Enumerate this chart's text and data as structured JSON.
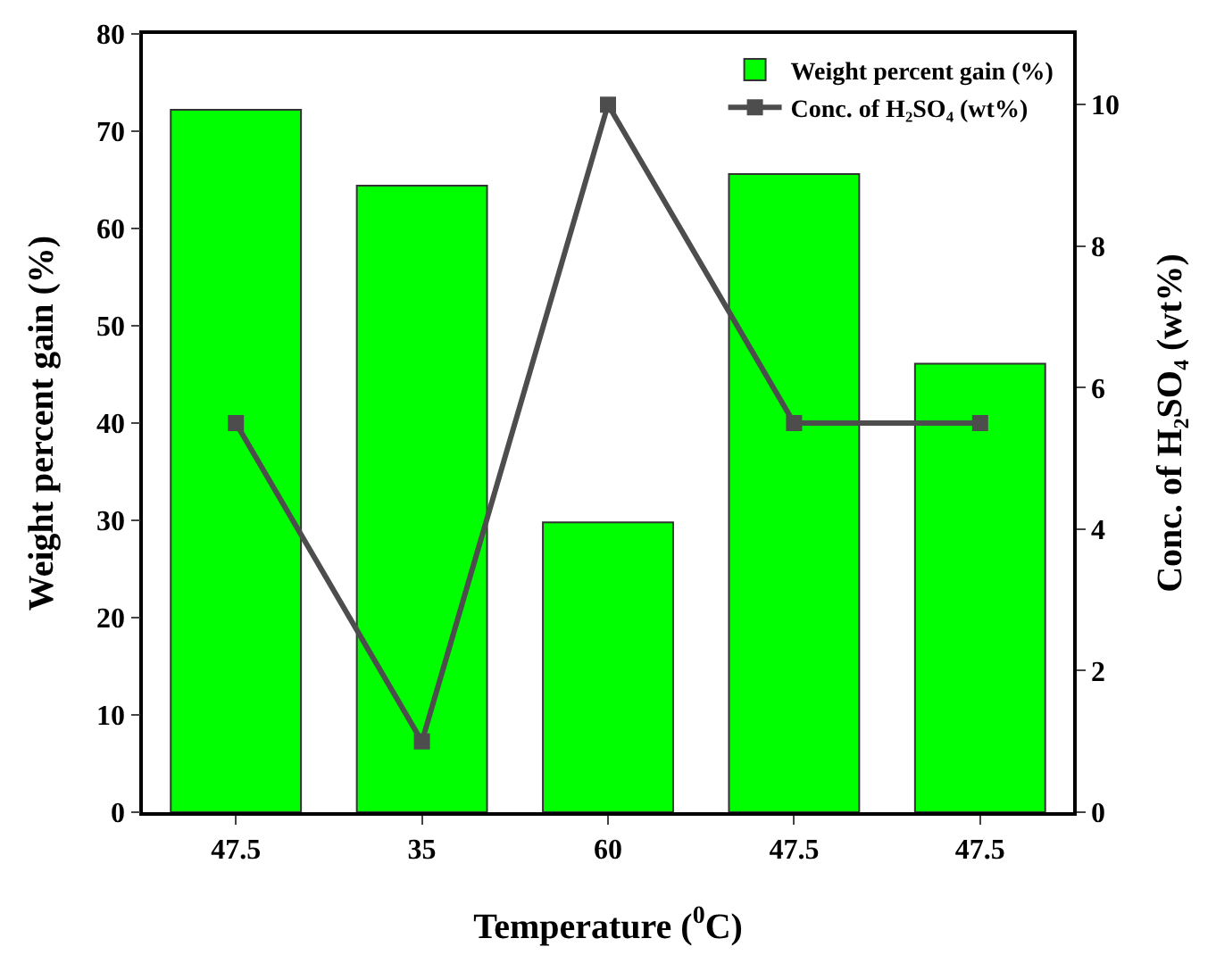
{
  "chart_data": {
    "type": "bar",
    "xlabel": "Temperature ($^{0}$C)",
    "ylabel": "Weight percent gain (%)",
    "y2label": "Conc. of H₂SO₄ (wt%)",
    "categories": [
      "47.5",
      "35",
      "60",
      "47.5",
      "47.5"
    ],
    "series": [
      {
        "name": "Weight percent gain (%)",
        "color": "#00ff00",
        "values": [
          72.2,
          64.4,
          29.8,
          65.6,
          46.1
        ]
      },
      {
        "name": "Conc. of H₂SO₄ (wt%)",
        "type": "line",
        "axis": "y2",
        "color": "#4d4d4d",
        "marker": "square",
        "values": [
          5.5,
          1,
          10,
          5.5,
          5.5
        ]
      }
    ],
    "ylim": [
      0,
      80
    ],
    "yticks": [
      0,
      10,
      20,
      30,
      40,
      50,
      60,
      70,
      80
    ],
    "y2lim": [
      0,
      11
    ],
    "y2ticks": [
      0,
      2,
      4,
      6,
      8,
      10
    ],
    "grid": false,
    "legend": "top right"
  }
}
